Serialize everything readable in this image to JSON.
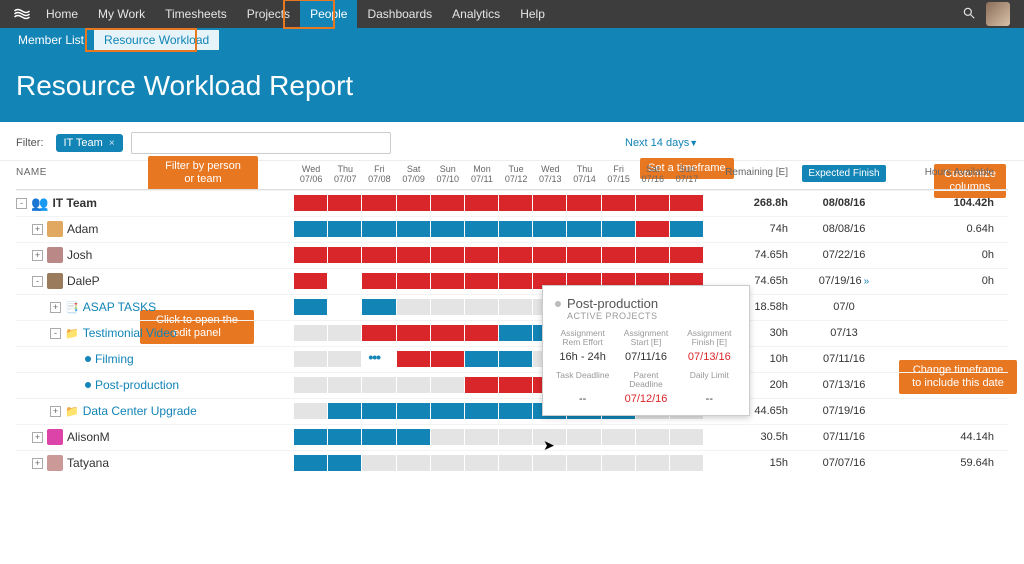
{
  "nav": {
    "items": [
      "Home",
      "My Work",
      "Timesheets",
      "Projects",
      "People",
      "Dashboards",
      "Analytics",
      "Help"
    ],
    "active_index": 4
  },
  "subnav": {
    "items": [
      "Member List",
      "Resource Workload"
    ],
    "active_index": 1
  },
  "page_title": "Resource Workload Report",
  "filter": {
    "label": "Filter:",
    "chip": "IT Team",
    "timeframe": "Next 14 days"
  },
  "annotations": {
    "filter_hint": "Filter by person\nor team",
    "timeframe_hint": "Set a timeframe",
    "columns_hint": "Customize\ncolumns",
    "edit_panel_hint": "Click to open the\nedit panel",
    "date_hint": "Change timeframe\nto include this date"
  },
  "columns": {
    "name": "NAME",
    "days": [
      {
        "dow": "Wed",
        "date": "07/06"
      },
      {
        "dow": "Thu",
        "date": "07/07"
      },
      {
        "dow": "Fri",
        "date": "07/08"
      },
      {
        "dow": "Sat",
        "date": "07/09"
      },
      {
        "dow": "Sun",
        "date": "07/10"
      },
      {
        "dow": "Mon",
        "date": "07/11"
      },
      {
        "dow": "Tue",
        "date": "07/12"
      },
      {
        "dow": "Wed",
        "date": "07/13"
      },
      {
        "dow": "Thu",
        "date": "07/14"
      },
      {
        "dow": "Fri",
        "date": "07/15"
      },
      {
        "dow": "Sat",
        "date": "07/16"
      },
      {
        "dow": "Sun",
        "date": "07/17"
      }
    ],
    "remaining": "Remaining [E]",
    "finish": "Expected Finish",
    "hours": "Hours Available"
  },
  "colors": {
    "red": "#d9262a",
    "blue": "#1284b6",
    "grey": "#e4e4e4"
  },
  "rows": [
    {
      "id": "it-team",
      "level": 0,
      "expander": "-",
      "icon": "team",
      "name": "IT Team",
      "bold": true,
      "bars": [
        "red",
        "red",
        "red",
        "red",
        "red",
        "red",
        "red",
        "red",
        "red",
        "red",
        "red",
        "red"
      ],
      "remaining": "268.8h",
      "finish": "08/08/16",
      "hours": "104.42h"
    },
    {
      "id": "adam",
      "level": 1,
      "expander": "+",
      "icon": "person",
      "name": "Adam",
      "bars": [
        "blue",
        "blue",
        "blue",
        "blue",
        "blue",
        "blue",
        "blue",
        "blue",
        "blue",
        "blue",
        "red",
        "blue"
      ],
      "remaining": "74h",
      "finish": "08/08/16",
      "hours": "0.64h"
    },
    {
      "id": "josh",
      "level": 1,
      "expander": "+",
      "icon": "person",
      "name": "Josh",
      "bars": [
        "red",
        "red",
        "red",
        "red",
        "red",
        "red",
        "red",
        "red",
        "red",
        "red",
        "red",
        "red"
      ],
      "remaining": "74.65h",
      "finish": "07/22/16",
      "hours": "0h"
    },
    {
      "id": "dalep",
      "level": 1,
      "expander": "-",
      "icon": "person",
      "name": "DaleP",
      "bars": [
        "red",
        "empty",
        "red",
        "red",
        "red",
        "red",
        "red",
        "red",
        "red",
        "red",
        "red",
        "red"
      ],
      "remaining": "74.65h",
      "finish": "07/19/16",
      "finish_marker": true,
      "hours": "0h"
    },
    {
      "id": "asap",
      "level": 2,
      "expander": "+",
      "icon": "folder-special",
      "name": "ASAP TASKS",
      "link": true,
      "bars": [
        "blue",
        "empty",
        "blue",
        "grey",
        "grey",
        "grey",
        "grey",
        "grey",
        "grey",
        "grey",
        "grey",
        "grey"
      ],
      "remaining": "18.58h",
      "finish": "07/0"
    },
    {
      "id": "testimonial",
      "level": 2,
      "expander": "-",
      "icon": "folder",
      "name": "Testimonial Video",
      "link": true,
      "bars": [
        "grey",
        "grey",
        "red",
        "red",
        "red",
        "red",
        "blue",
        "blue",
        "grey",
        "grey",
        "grey",
        "grey"
      ],
      "remaining": "30h",
      "finish": "07/13",
      "diamond_at": 7
    },
    {
      "id": "filming",
      "level": 3,
      "icon": "bullet",
      "name": "Filming",
      "link": true,
      "bars": [
        "grey",
        "grey",
        "empty",
        "red",
        "red",
        "blue",
        "blue",
        "grey",
        "grey",
        "grey",
        "grey",
        "grey"
      ],
      "remaining": "10h",
      "finish": "07/11/16",
      "dots_at": 2,
      "diamond_at": 7
    },
    {
      "id": "postprod",
      "level": 3,
      "icon": "bullet",
      "name": "Post-production",
      "link": true,
      "bars": [
        "grey",
        "grey",
        "grey",
        "grey",
        "grey",
        "red",
        "red",
        "red",
        "grey",
        "grey",
        "grey",
        "grey"
      ],
      "remaining": "20h",
      "finish": "07/13/16"
    },
    {
      "id": "datacenter",
      "level": 2,
      "expander": "+",
      "icon": "folder",
      "name": "Data Center Upgrade",
      "link": true,
      "bars": [
        "grey",
        "blue",
        "blue",
        "blue",
        "blue",
        "blue",
        "blue",
        "blue",
        "blue",
        "blue",
        "grey",
        "grey"
      ],
      "remaining": "44.65h",
      "finish": "07/19/16"
    },
    {
      "id": "alisonm",
      "level": 1,
      "expander": "+",
      "icon": "person",
      "name": "AlisonM",
      "bars": [
        "blue",
        "blue",
        "blue",
        "blue",
        "grey",
        "grey",
        "grey",
        "grey",
        "grey",
        "grey",
        "grey",
        "grey"
      ],
      "remaining": "30.5h",
      "finish": "07/11/16",
      "hours": "44.14h"
    },
    {
      "id": "tatyana",
      "level": 1,
      "expander": "+",
      "icon": "person",
      "name": "Tatyana",
      "bars": [
        "blue",
        "blue",
        "grey",
        "grey",
        "grey",
        "grey",
        "grey",
        "grey",
        "grey",
        "grey",
        "grey",
        "grey"
      ],
      "remaining": "15h",
      "finish": "07/07/16",
      "hours": "59.64h"
    }
  ],
  "tooltip": {
    "title": "Post-production",
    "subtitle": "ACTIVE PROJECTS",
    "cells": [
      {
        "lbl": "Assignment Rem Effort",
        "val": "16h - 24h"
      },
      {
        "lbl": "Assignment Start [E]",
        "val": "07/11/16"
      },
      {
        "lbl": "Assignment Finish [E]",
        "val": "07/13/16",
        "red": true
      },
      {
        "lbl": "Task Deadline",
        "val": "--"
      },
      {
        "lbl": "Parent Deadline",
        "val": "07/12/16",
        "red": true
      },
      {
        "lbl": "Daily Limit",
        "val": "--"
      }
    ]
  }
}
